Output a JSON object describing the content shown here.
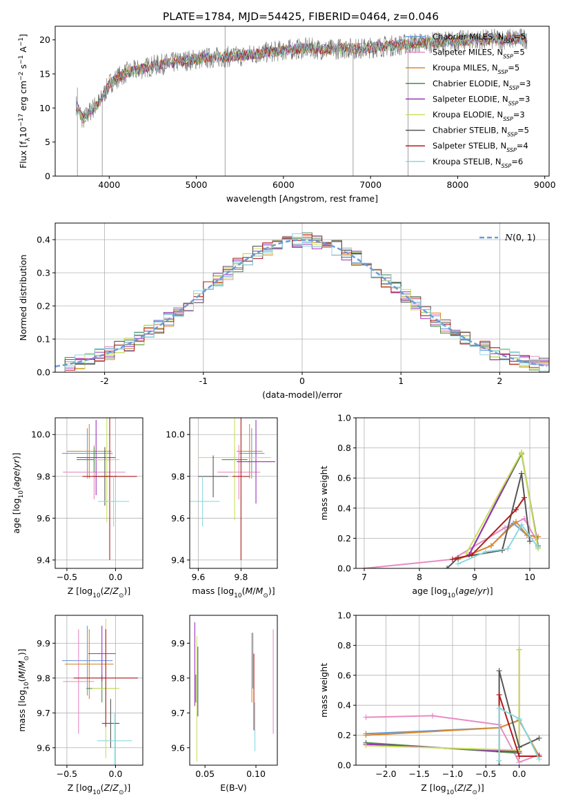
{
  "figure": {
    "title": "PLATE=1784, MJD=54425, FIBERID=0464, z=0.046"
  },
  "colors": {
    "Chabrier MILES": "#6a9bd8",
    "Salpeter MILES": "#e78ac3",
    "Kroupa MILES": "#d98a2b",
    "Chabrier ELODIE": "#4c8a4c",
    "Salpeter ELODIE": "#9b30b8",
    "Kroupa ELODIE": "#c8e05a",
    "Chabrier STELIB": "#555555",
    "Salpeter STELIB": "#b01c1c",
    "Kroupa STELIB": "#8ad8e0",
    "normal_curve": "#6a9bd8",
    "grid": "#b0b0b0"
  },
  "chart_data": [
    {
      "id": "spectrum",
      "type": "line",
      "title": "PLATE=1784, MJD=54425, FIBERID=0464, z=0.046",
      "xlabel": "wavelength [Angstrom, rest frame]",
      "ylabel": "Flux [f_λ 10^-17 erg cm^-2 s^-1 A^-1]",
      "xlim": [
        3380,
        9050
      ],
      "ylim": [
        0,
        22
      ],
      "xticks": [
        4000,
        5000,
        6000,
        7000,
        8000,
        9000
      ],
      "yticks": [
        0,
        5,
        10,
        15,
        20
      ],
      "grid": false,
      "legend_position": "top-right",
      "legend": [
        "Chabrier MILES, N_SSP=5",
        "Salpeter MILES, N_SSP=5",
        "Kroupa MILES, N_SSP=5",
        "Chabrier ELODIE, N_SSP=3",
        "Salpeter ELODIE, N_SSP=3",
        "Kroupa ELODIE, N_SSP=3",
        "Chabrier STELIB, N_SSP=5",
        "Salpeter STELIB, N_SSP=4",
        "Kroupa STELIB, N_SSP=6"
      ],
      "data_observed": {
        "x": [
          3620,
          3700,
          3800,
          3900,
          4000,
          4100,
          4200,
          4300,
          4500,
          4700,
          4900,
          5100,
          5300,
          5500,
          5700,
          5900,
          6100,
          6300,
          6500,
          6700,
          6900,
          7100,
          7300,
          7500,
          7700,
          7900,
          8100,
          8300,
          8500,
          8800
        ],
        "y": [
          10.5,
          8.2,
          9.8,
          11.0,
          13.5,
          14.5,
          15.2,
          15.5,
          16.2,
          16.6,
          17.0,
          17.3,
          17.5,
          17.6,
          18.0,
          18.3,
          18.6,
          18.8,
          18.5,
          18.8,
          18.7,
          19.0,
          19.2,
          19.5,
          19.6,
          19.8,
          19.9,
          20.0,
          20.1,
          20.2
        ]
      }
    },
    {
      "id": "residuals",
      "type": "line",
      "xlabel": "(data-model)/error",
      "ylabel": "Normed distribution",
      "xlim": [
        -2.5,
        2.5
      ],
      "ylim": [
        0,
        0.45
      ],
      "xticks": [
        -2,
        -1,
        0,
        1,
        2
      ],
      "yticks": [
        0.0,
        0.1,
        0.2,
        0.3,
        0.4
      ],
      "grid": true,
      "legend_position": "top-right",
      "legend": [
        "N(0,1)"
      ],
      "bin_width": 0.1
    },
    {
      "id": "age-vs-Z",
      "type": "scatter",
      "xlabel": "Z [log10(Z/Z⊙)]",
      "ylabel": "age [log10(age/yr)]",
      "xlim": [
        -0.62,
        0.28
      ],
      "ylim": [
        9.36,
        10.08
      ],
      "xticks": [
        -0.5,
        0.0
      ],
      "xtick_labels": [
        "−0.5",
        "0.0"
      ],
      "yticks": [
        9.4,
        9.6,
        9.8,
        10.0
      ],
      "grid": true,
      "series": [
        {
          "color_key": "Chabrier MILES",
          "x": -0.29,
          "xerr": 0.26,
          "y": 9.91,
          "yerr": 0.12
        },
        {
          "color_key": "Salpeter MILES",
          "x": -0.22,
          "xerr": 0.32,
          "y": 9.82,
          "yerr": 0.13
        },
        {
          "color_key": "Kroupa MILES",
          "x": -0.27,
          "xerr": 0.23,
          "y": 9.92,
          "yerr": 0.13
        },
        {
          "color_key": "Chabrier ELODIE",
          "x": -0.22,
          "xerr": 0.18,
          "y": 9.88,
          "yerr": 0.06
        },
        {
          "color_key": "Salpeter ELODIE",
          "x": -0.2,
          "xerr": 0.2,
          "y": 9.89,
          "yerr": 0.18
        },
        {
          "color_key": "Kroupa ELODIE",
          "x": -0.09,
          "xerr": 0.13,
          "y": 9.88,
          "yerr": 0.3
        },
        {
          "color_key": "Chabrier STELIB",
          "x": -0.11,
          "xerr": 0.12,
          "y": 9.8,
          "yerr": 0.14
        },
        {
          "color_key": "Salpeter STELIB",
          "x": -0.06,
          "xerr": 0.28,
          "y": 9.8,
          "yerr": 0.4
        },
        {
          "color_key": "Kroupa STELIB",
          "x": -0.02,
          "xerr": 0.16,
          "y": 9.68,
          "yerr": 0.12
        }
      ]
    },
    {
      "id": "age-vs-mass",
      "type": "scatter",
      "xlabel": "mass [log10(M/M⊙)]",
      "ylabel": "",
      "xlim": [
        9.56,
        9.97
      ],
      "ylim": [
        9.36,
        10.08
      ],
      "xticks": [
        9.6,
        9.8
      ],
      "yticks": [
        9.4,
        9.6,
        9.8,
        10.0
      ],
      "grid": true,
      "series": [
        {
          "color_key": "Chabrier MILES",
          "x": 9.85,
          "xerr": 0.06,
          "y": 9.91,
          "yerr": 0.12
        },
        {
          "color_key": "Salpeter MILES",
          "x": 9.79,
          "xerr": 0.1,
          "y": 9.82,
          "yerr": 0.13
        },
        {
          "color_key": "Kroupa MILES",
          "x": 9.84,
          "xerr": 0.06,
          "y": 9.92,
          "yerr": 0.13
        },
        {
          "color_key": "Chabrier ELODIE",
          "x": 9.77,
          "xerr": 0.06,
          "y": 9.88,
          "yerr": 0.06
        },
        {
          "color_key": "Salpeter ELODIE",
          "x": 9.87,
          "xerr": 0.09,
          "y": 9.87,
          "yerr": 0.2
        },
        {
          "color_key": "Kroupa ELODIE",
          "x": 9.77,
          "xerr": 0.17,
          "y": 9.89,
          "yerr": 0.3
        },
        {
          "color_key": "Chabrier STELIB",
          "x": 9.67,
          "xerr": 0.07,
          "y": 9.8,
          "yerr": 0.1
        },
        {
          "color_key": "Salpeter STELIB",
          "x": 9.8,
          "xerr": 0.04,
          "y": 9.8,
          "yerr": 0.4
        },
        {
          "color_key": "Kroupa STELIB",
          "x": 9.62,
          "xerr": 0.08,
          "y": 9.68,
          "yerr": 0.12
        }
      ]
    },
    {
      "id": "mass-weight-vs-age",
      "type": "line",
      "xlabel": "age [log10(age/yr)]",
      "ylabel": "mass weight",
      "xlim": [
        6.85,
        10.35
      ],
      "ylim": [
        0,
        1
      ],
      "xticks": [
        7,
        8,
        9,
        10
      ],
      "yticks": [
        0.0,
        0.2,
        0.4,
        0.6,
        0.8,
        1.0
      ],
      "grid": true,
      "series": [
        {
          "color_key": "Salpeter MILES",
          "x": [
            7.0,
            8.6,
            9.55,
            9.9,
            10.1
          ],
          "y": [
            0.0,
            0.06,
            0.27,
            0.33,
            0.2
          ]
        },
        {
          "color_key": "Chabrier MILES",
          "x": [
            8.7,
            9.3,
            9.7,
            9.95,
            10.15
          ],
          "y": [
            0.06,
            0.15,
            0.3,
            0.22,
            0.21
          ]
        },
        {
          "color_key": "Kroupa MILES",
          "x": [
            8.7,
            9.3,
            9.75,
            9.95,
            10.15
          ],
          "y": [
            0.06,
            0.15,
            0.31,
            0.22,
            0.21
          ]
        },
        {
          "color_key": "Chabrier ELODIE",
          "x": [
            8.9,
            9.85,
            10.15
          ],
          "y": [
            0.09,
            0.76,
            0.15
          ]
        },
        {
          "color_key": "Salpeter ELODIE",
          "x": [
            8.9,
            9.85,
            10.15
          ],
          "y": [
            0.09,
            0.77,
            0.14
          ]
        },
        {
          "color_key": "Kroupa ELODIE",
          "x": [
            8.85,
            9.85,
            10.15
          ],
          "y": [
            0.1,
            0.77,
            0.13
          ]
        },
        {
          "color_key": "Chabrier STELIB",
          "x": [
            8.5,
            8.7,
            9.5,
            9.85,
            10.0
          ],
          "y": [
            0.0,
            0.07,
            0.12,
            0.63,
            0.18
          ]
        },
        {
          "color_key": "Salpeter STELIB",
          "x": [
            8.6,
            8.95,
            9.75,
            9.9
          ],
          "y": [
            0.06,
            0.09,
            0.39,
            0.47
          ]
        },
        {
          "color_key": "Kroupa STELIB",
          "x": [
            8.7,
            9.2,
            9.6,
            9.85,
            10.15
          ],
          "y": [
            0.03,
            0.11,
            0.13,
            0.29,
            0.14
          ]
        }
      ]
    },
    {
      "id": "mass-vs-Z",
      "type": "scatter",
      "xlabel": "Z [log10(Z/Z⊙)]",
      "ylabel": "mass [log10(M/M⊙)]",
      "xlim": [
        -0.62,
        0.28
      ],
      "ylim": [
        9.55,
        9.98
      ],
      "xticks": [
        -0.5,
        0.0
      ],
      "xtick_labels": [
        "−0.5",
        "0.0"
      ],
      "yticks": [
        9.6,
        9.7,
        9.8,
        9.9
      ],
      "grid": true,
      "series": [
        {
          "color_key": "Chabrier MILES",
          "x": -0.29,
          "xerr": 0.26,
          "y": 9.85,
          "yerr": 0.1
        },
        {
          "color_key": "Salpeter MILES",
          "x": -0.38,
          "xerr": 0.16,
          "y": 9.79,
          "yerr": 0.15
        },
        {
          "color_key": "Kroupa MILES",
          "x": -0.27,
          "xerr": 0.25,
          "y": 9.84,
          "yerr": 0.1
        },
        {
          "color_key": "Chabrier ELODIE",
          "x": -0.14,
          "xerr": 0.16,
          "y": 9.77,
          "yerr": 0.04
        },
        {
          "color_key": "Salpeter ELODIE",
          "x": -0.14,
          "xerr": 0.14,
          "y": 9.87,
          "yerr": 0.08
        },
        {
          "color_key": "Kroupa ELODIE",
          "x": -0.1,
          "xerr": 0.14,
          "y": 9.77,
          "yerr": 0.2
        },
        {
          "color_key": "Chabrier STELIB",
          "x": -0.05,
          "xerr": 0.09,
          "y": 9.67,
          "yerr": 0.07
        },
        {
          "color_key": "Salpeter STELIB",
          "x": -0.1,
          "xerr": 0.33,
          "y": 9.8,
          "yerr": 0.14
        },
        {
          "color_key": "Kroupa STELIB",
          "x": -0.01,
          "xerr": 0.18,
          "y": 9.62,
          "yerr": 0.08
        }
      ]
    },
    {
      "id": "mass-vs-EBV",
      "type": "scatter",
      "xlabel": "E(B-V)",
      "ylabel": "",
      "xlim": [
        0.035,
        0.121
      ],
      "ylim": [
        9.55,
        9.98
      ],
      "xticks": [
        0.05,
        0.1
      ],
      "xtick_labels": [
        "0.05",
        "0.10"
      ],
      "yticks": [
        9.6,
        9.7,
        9.8,
        9.9
      ],
      "grid": false,
      "series": [
        {
          "color_key": "Chabrier MILES",
          "x": 0.097,
          "y": 9.85,
          "yerr": 0.08
        },
        {
          "color_key": "Salpeter MILES",
          "x": 0.117,
          "y": 9.79,
          "yerr": 0.15
        },
        {
          "color_key": "Kroupa MILES",
          "x": 0.096,
          "y": 9.83,
          "yerr": 0.1
        },
        {
          "color_key": "Chabrier ELODIE",
          "x": 0.041,
          "y": 9.77,
          "yerr": 0.04
        },
        {
          "color_key": "Salpeter ELODIE",
          "x": 0.04,
          "y": 9.84,
          "yerr": 0.12
        },
        {
          "color_key": "Kroupa ELODIE",
          "x": 0.042,
          "y": 9.74,
          "yerr": 0.18
        },
        {
          "color_key": "Chabrier STELIB",
          "x": 0.043,
          "y": 9.79,
          "yerr": 0.1
        },
        {
          "color_key": "Salpeter STELIB",
          "x": 0.098,
          "y": 9.76,
          "yerr": 0.11
        },
        {
          "color_key": "Kroupa STELIB",
          "x": 0.099,
          "y": 9.66,
          "yerr": 0.07
        }
      ]
    },
    {
      "id": "mass-weight-vs-Z",
      "type": "line",
      "xlabel": "Z [log10(Z/Z⊙)]",
      "ylabel": "mass weight",
      "xlim": [
        -2.45,
        0.45
      ],
      "ylim": [
        0,
        1
      ],
      "xticks": [
        -2.0,
        -1.5,
        -1.0,
        -0.5,
        0.0
      ],
      "xtick_labels": [
        "−2.0",
        "−1.5",
        "−1.0",
        "−0.5",
        "0.0"
      ],
      "yticks": [
        0.0,
        0.2,
        0.4,
        0.6,
        0.8,
        1.0
      ],
      "grid": true,
      "series": [
        {
          "color_key": "Salpeter MILES",
          "x": [
            -2.3,
            -1.3,
            -0.3,
            0.0,
            0.3
          ],
          "y": [
            0.32,
            0.33,
            0.27,
            0.02,
            0.07
          ]
        },
        {
          "color_key": "Chabrier MILES",
          "x": [
            -2.3,
            -0.3,
            0.0,
            0.3
          ],
          "y": [
            0.21,
            0.25,
            0.3,
            0.06
          ]
        },
        {
          "color_key": "Kroupa MILES",
          "x": [
            -2.3,
            -0.3,
            0.0,
            0.3
          ],
          "y": [
            0.2,
            0.25,
            0.3,
            0.06
          ]
        },
        {
          "color_key": "Chabrier ELODIE",
          "x": [
            -2.3,
            0.0,
            0.0
          ],
          "y": [
            0.15,
            0.08,
            0.77
          ]
        },
        {
          "color_key": "Salpeter ELODIE",
          "x": [
            -2.3,
            0.0,
            0.0
          ],
          "y": [
            0.14,
            0.09,
            0.77
          ]
        },
        {
          "color_key": "Kroupa ELODIE",
          "x": [
            -2.3,
            0.0,
            0.0
          ],
          "y": [
            0.13,
            0.1,
            0.77
          ]
        },
        {
          "color_key": "Chabrier STELIB",
          "x": [
            -0.3,
            -0.3,
            0.0,
            0.3
          ],
          "y": [
            0.0,
            0.63,
            0.12,
            0.18
          ]
        },
        {
          "color_key": "Salpeter STELIB",
          "x": [
            -0.3,
            -0.3,
            0.0,
            0.3
          ],
          "y": [
            0.09,
            0.47,
            0.06,
            0.06
          ]
        },
        {
          "color_key": "Kroupa STELIB",
          "x": [
            -0.3,
            -0.3,
            0.0,
            0.3
          ],
          "y": [
            0.03,
            0.38,
            0.31,
            0.04
          ]
        }
      ]
    }
  ]
}
